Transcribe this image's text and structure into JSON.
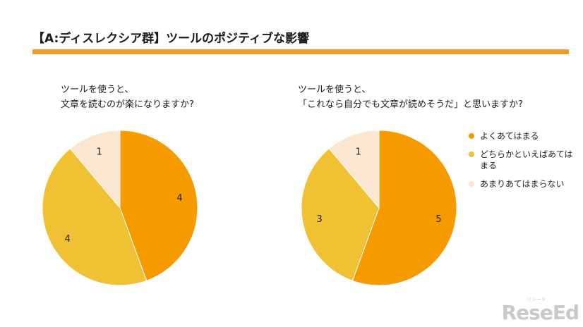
{
  "header": {
    "title": "【A:ディスレクシア群】ツールのポジティブな影響"
  },
  "colors": {
    "accent_rule": "#f29a2e",
    "series": [
      "#f59b00",
      "#f0c233",
      "#fbe6d2"
    ]
  },
  "chart_data": [
    {
      "type": "pie",
      "title_lines": [
        "ツールを使うと、",
        "文章を読むのが楽になりますか?"
      ],
      "categories": [
        "よくあてはまる",
        "どちらかといえばあてはまる",
        "あまりあてはまらない"
      ],
      "values": [
        4,
        4,
        1
      ],
      "labels": [
        "4",
        "4",
        "1"
      ]
    },
    {
      "type": "pie",
      "title_lines": [
        "ツールを使うと、",
        "「これなら自分でも文章が読めそうだ」と思いますか?"
      ],
      "categories": [
        "よくあてはまる",
        "どちらかといえばあてはまる",
        "あまりあてはまらない"
      ],
      "values": [
        5,
        3,
        1
      ],
      "labels": [
        "5",
        "3",
        "1"
      ]
    }
  ],
  "legend": {
    "placement": "right",
    "items": [
      {
        "label": "よくあてはまる",
        "color": "#f59b00"
      },
      {
        "label": "どちらかといえばあてはまる",
        "color": "#f0c233"
      },
      {
        "label": "あまりあてはまらない",
        "color": "#fbe6d2"
      }
    ]
  },
  "logo": {
    "text": "ReseEd",
    "sub": "リシード"
  }
}
